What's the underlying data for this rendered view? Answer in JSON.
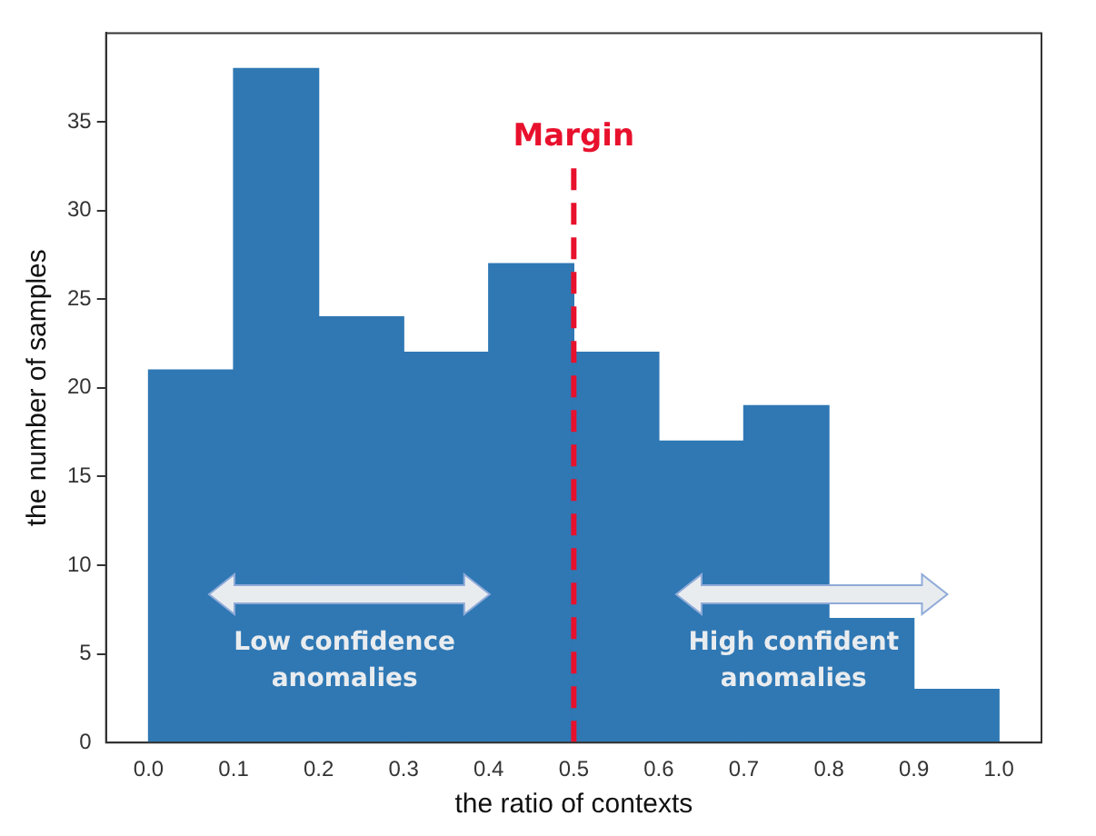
{
  "chart_data": {
    "type": "histogram",
    "xlabel": "the ratio of contexts",
    "ylabel": "the number of samples",
    "bins": [
      0,
      0.1,
      0.2,
      0.3,
      0.4,
      0.5,
      0.6,
      0.7,
      0.8,
      0.9,
      1.0
    ],
    "values": [
      21,
      38,
      24,
      22,
      27,
      22,
      17,
      19,
      7,
      3
    ],
    "color": "#2f78b4",
    "xlim": [
      -0.05,
      1.05
    ],
    "xticks": [
      {
        "value": 0,
        "label": "0.0"
      },
      {
        "value": 0.1,
        "label": "0.1"
      },
      {
        "value": 0.2,
        "label": "0.2"
      },
      {
        "value": 0.3,
        "label": "0.3"
      },
      {
        "value": 0.4,
        "label": "0.4"
      },
      {
        "value": 0.5,
        "label": "0.5"
      },
      {
        "value": 0.6,
        "label": "0.6"
      },
      {
        "value": 0.7,
        "label": "0.7"
      },
      {
        "value": 0.8,
        "label": "0.8"
      },
      {
        "value": 0.9,
        "label": "0.9"
      },
      {
        "value": 1.0,
        "label": "1.0"
      }
    ],
    "ylim": [
      0,
      40
    ],
    "yticks": [
      0,
      5,
      10,
      15,
      20,
      25,
      30,
      35
    ],
    "grid": false,
    "legend": false,
    "ref_lines": [
      {
        "axis": "x",
        "value": 0.5,
        "label": "Margin",
        "color": "#e8112d",
        "line_style": "dashed"
      }
    ],
    "annotations": [
      "Low confidence anomalies",
      "High confident anomalies"
    ]
  }
}
